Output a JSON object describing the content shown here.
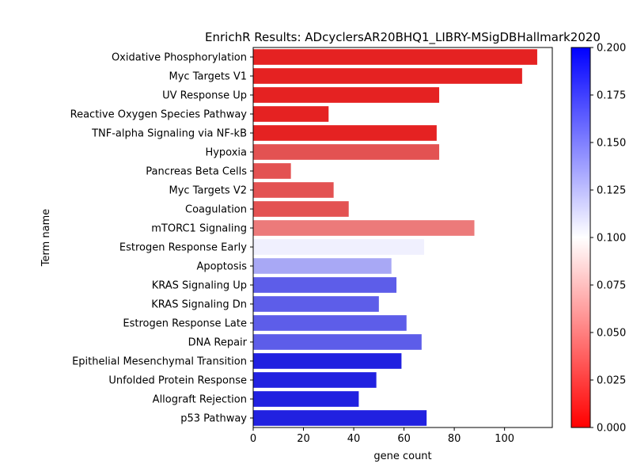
{
  "chart_data": {
    "type": "bar",
    "orientation": "horizontal",
    "title": "EnrichR Results: ADcyclersAR20BHQ1_LIBRY-MSigDBHallmark2020",
    "xlabel": "gene count",
    "ylabel": "Term name",
    "xlim": [
      0,
      119
    ],
    "x_ticks": [
      "0",
      "20",
      "40",
      "60",
      "80",
      "100"
    ],
    "grid": false,
    "categories": [
      "Oxidative Phosphorylation",
      "Myc Targets V1",
      "UV Response Up",
      "Reactive Oxygen Species Pathway",
      "TNF-alpha Signaling via NF-kB",
      "Hypoxia",
      "Pancreas Beta Cells",
      "Myc Targets V2",
      "Coagulation",
      "mTORC1 Signaling",
      "Estrogen Response Early",
      "Apoptosis",
      "KRAS Signaling Up",
      "KRAS Signaling Dn",
      "Estrogen Response Late",
      "DNA Repair",
      "Epithelial Mesenchymal Transition",
      "Unfolded Protein Response",
      "Allograft Rejection",
      "p53 Pathway"
    ],
    "values": [
      113,
      107,
      74,
      30,
      73,
      74,
      15,
      32,
      38,
      88,
      68,
      55,
      57,
      50,
      61,
      67,
      59,
      49,
      42,
      69
    ],
    "bar_colors": [
      "#e52222",
      "#e52222",
      "#e52222",
      "#e52222",
      "#e52222",
      "#e35252",
      "#e35252",
      "#e35252",
      "#e35252",
      "#ec7a7a",
      "#f0f0fe",
      "#a8a8f5",
      "#5d5de9",
      "#5d5de9",
      "#5d5de9",
      "#5d5de9",
      "#2121e0",
      "#2121e0",
      "#2121e0",
      "#2121e0"
    ],
    "colorbar": {
      "min": 0.0,
      "max": 0.2,
      "ticks": [
        "0.000",
        "0.025",
        "0.050",
        "0.075",
        "0.100",
        "0.125",
        "0.150",
        "0.175",
        "0.200"
      ],
      "colors": [
        "#ff0000",
        "#ffffff",
        "#0000ff"
      ]
    }
  }
}
